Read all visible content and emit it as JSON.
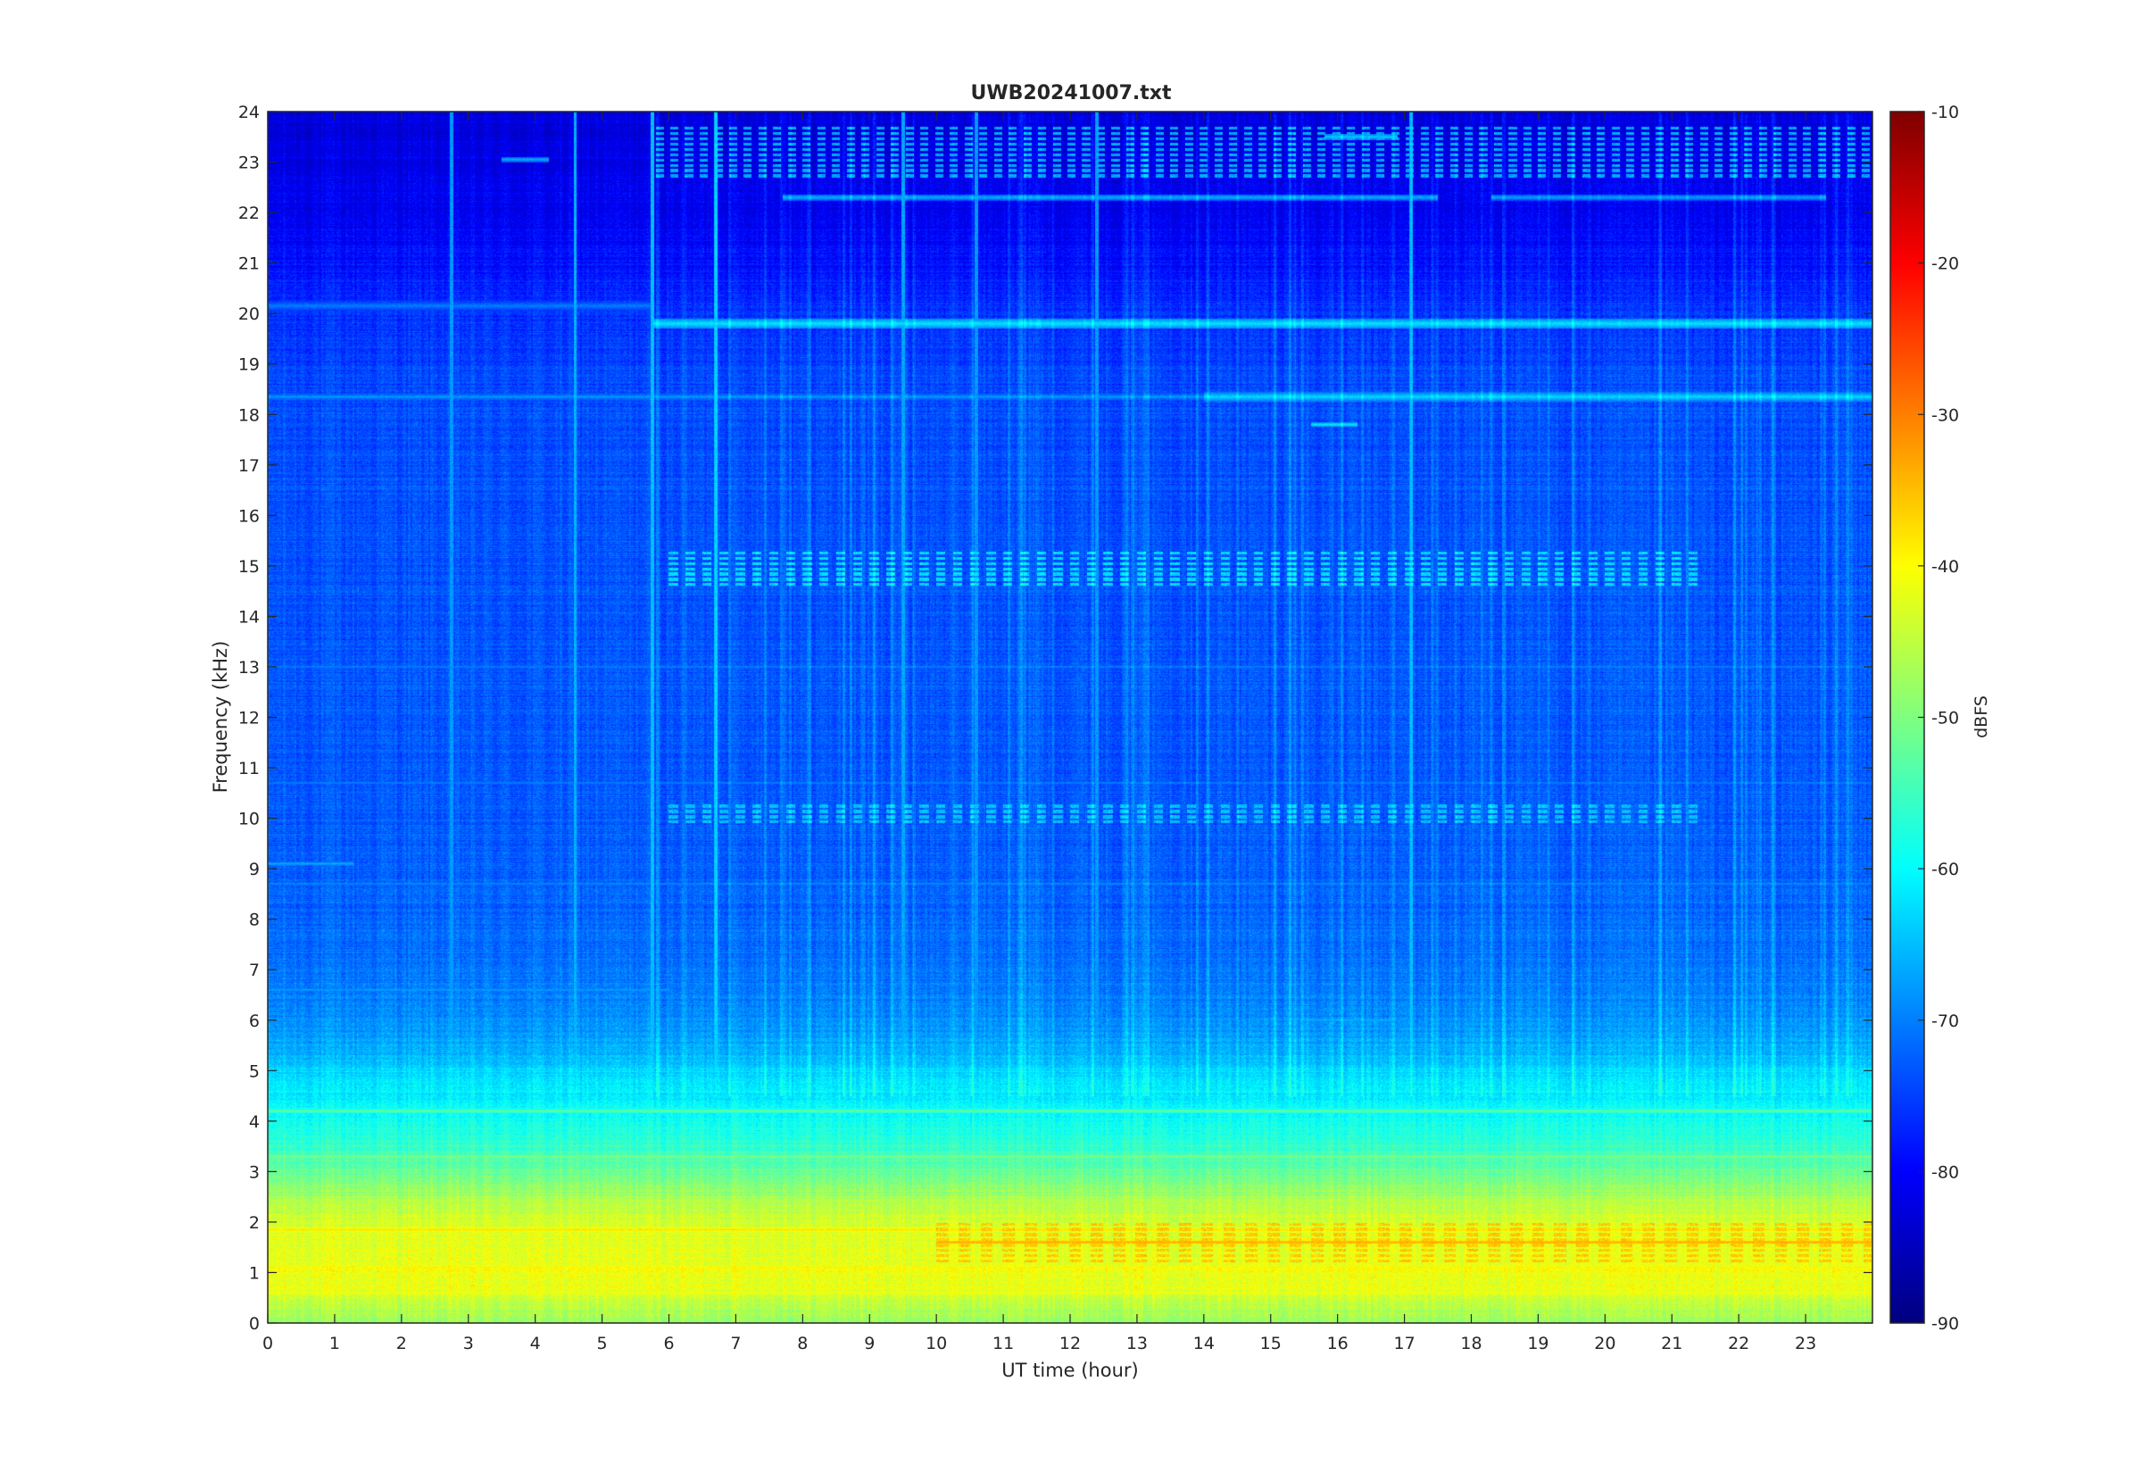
{
  "chart_data": {
    "type": "heatmap",
    "title": "UWB20241007.txt",
    "xlabel": "UT time (hour)",
    "ylabel": "Frequency (kHz)",
    "xlim": [
      0,
      24
    ],
    "ylim": [
      0,
      24
    ],
    "x_ticks": [
      0,
      1,
      2,
      3,
      4,
      5,
      6,
      7,
      8,
      9,
      10,
      11,
      12,
      13,
      14,
      15,
      16,
      17,
      18,
      19,
      20,
      21,
      22,
      23
    ],
    "y_ticks": [
      0,
      1,
      2,
      3,
      4,
      5,
      6,
      7,
      8,
      9,
      10,
      11,
      12,
      13,
      14,
      15,
      16,
      17,
      18,
      19,
      20,
      21,
      22,
      23,
      24
    ],
    "colormap": "jet",
    "colorbar": {
      "label": "dBFS",
      "range": [
        -90,
        -10
      ],
      "ticks": [
        -90,
        -80,
        -70,
        -60,
        -50,
        -40,
        -30,
        -20,
        -10
      ]
    },
    "background_profile": [
      {
        "freq": 0.0,
        "dbfs": -48
      },
      {
        "freq": 0.3,
        "dbfs": -46
      },
      {
        "freq": 0.6,
        "dbfs": -42
      },
      {
        "freq": 1.0,
        "dbfs": -41
      },
      {
        "freq": 1.5,
        "dbfs": -42
      },
      {
        "freq": 2.0,
        "dbfs": -43
      },
      {
        "freq": 2.5,
        "dbfs": -47
      },
      {
        "freq": 3.0,
        "dbfs": -52
      },
      {
        "freq": 3.5,
        "dbfs": -56
      },
      {
        "freq": 4.0,
        "dbfs": -59
      },
      {
        "freq": 4.5,
        "dbfs": -61
      },
      {
        "freq": 5.0,
        "dbfs": -63
      },
      {
        "freq": 5.5,
        "dbfs": -67
      },
      {
        "freq": 6.0,
        "dbfs": -69
      },
      {
        "freq": 7.0,
        "dbfs": -71
      },
      {
        "freq": 8.0,
        "dbfs": -72
      },
      {
        "freq": 10.0,
        "dbfs": -73
      },
      {
        "freq": 14.0,
        "dbfs": -73.5
      },
      {
        "freq": 18.0,
        "dbfs": -74
      },
      {
        "freq": 20.0,
        "dbfs": -76
      },
      {
        "freq": 21.0,
        "dbfs": -79
      },
      {
        "freq": 22.0,
        "dbfs": -81
      },
      {
        "freq": 23.0,
        "dbfs": -82
      },
      {
        "freq": 24.0,
        "dbfs": -83
      }
    ],
    "tones": [
      {
        "freq": 19.8,
        "t0": 5.75,
        "t1": 24,
        "dbfs": -62,
        "width": 0.1
      },
      {
        "freq": 20.15,
        "t0": 0,
        "t1": 5.75,
        "dbfs": -70,
        "width": 0.12
      },
      {
        "freq": 18.35,
        "t0": 0,
        "t1": 14,
        "dbfs": -68,
        "width": 0.08
      },
      {
        "freq": 18.35,
        "t0": 14,
        "t1": 24,
        "dbfs": -63,
        "width": 0.09
      },
      {
        "freq": 17.8,
        "t0": 15.6,
        "t1": 16.3,
        "dbfs": -62,
        "width": 0.05
      },
      {
        "freq": 22.3,
        "t0": 7.7,
        "t1": 17.5,
        "dbfs": -66,
        "width": 0.06
      },
      {
        "freq": 22.3,
        "t0": 18.3,
        "t1": 23.3,
        "dbfs": -67,
        "width": 0.06
      },
      {
        "freq": 23.5,
        "t0": 15.8,
        "t1": 16.9,
        "dbfs": -64,
        "width": 0.06
      },
      {
        "freq": 23.05,
        "t0": 3.5,
        "t1": 4.2,
        "dbfs": -66,
        "width": 0.05
      },
      {
        "freq": 9.1,
        "t0": 0,
        "t1": 1.3,
        "dbfs": -66,
        "width": 0.05
      },
      {
        "freq": 6.0,
        "t0": 15.5,
        "t1": 16.8,
        "dbfs": -65,
        "width": 0.04
      },
      {
        "freq": 13.0,
        "t0": 0,
        "t1": 24,
        "dbfs": -69,
        "width": 0.04
      },
      {
        "freq": 10.7,
        "t0": 0,
        "t1": 24,
        "dbfs": -69,
        "width": 0.04
      },
      {
        "freq": 8.7,
        "t0": 0,
        "t1": 24,
        "dbfs": -68,
        "width": 0.04
      },
      {
        "freq": 6.6,
        "t0": 0,
        "t1": 6,
        "dbfs": -67,
        "width": 0.05
      },
      {
        "freq": 4.2,
        "t0": 0,
        "t1": 24,
        "dbfs": -52,
        "width": 0.05
      },
      {
        "freq": 3.3,
        "t0": 0,
        "t1": 24,
        "dbfs": -50,
        "width": 0.05
      },
      {
        "freq": 2.4,
        "t0": 0,
        "t1": 24,
        "dbfs": -45,
        "width": 0.05
      },
      {
        "freq": 1.85,
        "t0": 0,
        "t1": 24,
        "dbfs": -37,
        "width": 0.05
      },
      {
        "freq": 1.6,
        "t0": 10,
        "t1": 24,
        "dbfs": -33,
        "width": 0.05
      },
      {
        "freq": 1.1,
        "t0": 0,
        "t1": 24,
        "dbfs": -38,
        "width": 0.05
      },
      {
        "freq": 0.6,
        "t0": 0,
        "t1": 24,
        "dbfs": -40,
        "width": 0.05
      }
    ],
    "pulsed_bands": [
      {
        "f0": 14.6,
        "f1": 15.3,
        "t0": 6.0,
        "t1": 21.5,
        "dbfs": -63,
        "period_h": 0.25
      },
      {
        "f0": 9.9,
        "f1": 10.3,
        "t0": 6.0,
        "t1": 21.5,
        "dbfs": -65,
        "period_h": 0.25
      },
      {
        "f0": 22.7,
        "f1": 23.7,
        "t0": 5.8,
        "t1": 24,
        "dbfs": -67,
        "period_h": 0.22
      },
      {
        "f0": 1.2,
        "f1": 2.0,
        "t0": 10.0,
        "t1": 24,
        "dbfs": -36,
        "period_h": 0.33
      }
    ],
    "spikes": [
      {
        "t": 4.6,
        "dbfs": -66
      },
      {
        "t": 5.75,
        "dbfs": -65
      },
      {
        "t": 6.7,
        "dbfs": -65
      },
      {
        "t": 2.75,
        "dbfs": -68
      },
      {
        "t": 9.5,
        "dbfs": -67
      },
      {
        "t": 10.6,
        "dbfs": -68
      },
      {
        "t": 12.4,
        "dbfs": -68
      },
      {
        "t": 17.1,
        "dbfs": -68
      }
    ]
  }
}
